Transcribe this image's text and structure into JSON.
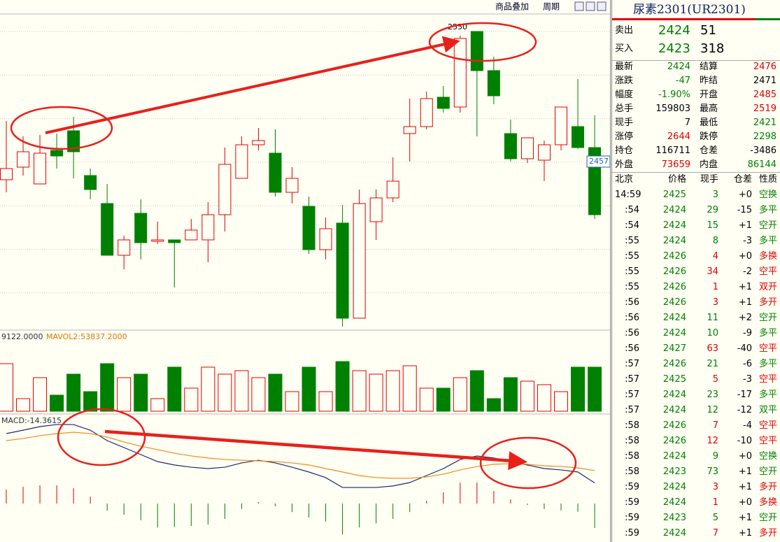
{
  "toolbar": {
    "overlay": "商品叠加",
    "period": "周期"
  },
  "chart": {
    "type": "candlestick",
    "ylim": [
      2337.5,
      2562.5
    ],
    "up_color": "#e00000",
    "down_color": "#008000",
    "candles": [
      {
        "open": 2444,
        "high": 2486,
        "low": 2435,
        "close": 2452
      },
      {
        "open": 2453,
        "high": 2475,
        "low": 2447,
        "close": 2464
      },
      {
        "open": 2441,
        "high": 2476,
        "low": 2441,
        "close": 2463
      },
      {
        "open": 2465,
        "high": 2477,
        "low": 2452,
        "close": 2461
      },
      {
        "open": 2479,
        "high": 2489,
        "low": 2445,
        "close": 2464
      },
      {
        "open": 2447,
        "high": 2452,
        "low": 2430,
        "close": 2437
      },
      {
        "open": 2427,
        "high": 2441,
        "low": 2390,
        "close": 2390
      },
      {
        "open": 2390,
        "high": 2404,
        "low": 2380,
        "close": 2401
      },
      {
        "open": 2420,
        "high": 2430,
        "low": 2387,
        "close": 2399
      },
      {
        "open": 2400,
        "high": 2414,
        "low": 2398,
        "close": 2401
      },
      {
        "open": 2401,
        "high": 2401,
        "low": 2367,
        "close": 2399
      },
      {
        "open": 2401,
        "high": 2416,
        "low": 2401,
        "close": 2408
      },
      {
        "open": 2401,
        "high": 2428,
        "low": 2385,
        "close": 2419
      },
      {
        "open": 2419,
        "high": 2467,
        "low": 2407,
        "close": 2455
      },
      {
        "open": 2445,
        "high": 2475,
        "low": 2445,
        "close": 2469
      },
      {
        "open": 2469,
        "high": 2481,
        "low": 2465,
        "close": 2472
      },
      {
        "open": 2463,
        "high": 2480,
        "low": 2432,
        "close": 2435
      },
      {
        "open": 2435,
        "high": 2453,
        "low": 2427,
        "close": 2445
      },
      {
        "open": 2425,
        "high": 2432,
        "low": 2391,
        "close": 2394
      },
      {
        "open": 2394,
        "high": 2417,
        "low": 2387,
        "close": 2409
      },
      {
        "open": 2413,
        "high": 2426,
        "low": 2339,
        "close": 2345
      },
      {
        "open": 2345,
        "high": 2437,
        "low": 2345,
        "close": 2427
      },
      {
        "open": 2414,
        "high": 2437,
        "low": 2401,
        "close": 2431
      },
      {
        "open": 2431,
        "high": 2460,
        "low": 2428,
        "close": 2443
      },
      {
        "open": 2477,
        "high": 2502,
        "low": 2457,
        "close": 2482
      },
      {
        "open": 2482,
        "high": 2507,
        "low": 2480,
        "close": 2502
      },
      {
        "open": 2503,
        "high": 2511,
        "low": 2492,
        "close": 2495
      },
      {
        "open": 2496,
        "high": 2547,
        "low": 2492,
        "close": 2545
      },
      {
        "open": 2550,
        "high": 2550,
        "low": 2475,
        "close": 2522
      },
      {
        "open": 2522,
        "high": 2532,
        "low": 2498,
        "close": 2504
      },
      {
        "open": 2477,
        "high": 2487,
        "low": 2457,
        "close": 2459
      },
      {
        "open": 2459,
        "high": 2474,
        "low": 2456,
        "close": 2474
      },
      {
        "open": 2458,
        "high": 2472,
        "low": 2443,
        "close": 2469
      },
      {
        "open": 2469,
        "high": 2496,
        "low": 2465,
        "close": 2496
      },
      {
        "open": 2482,
        "high": 2516,
        "low": 2466,
        "close": 2467
      },
      {
        "open": 2467,
        "high": 2490,
        "low": 2416,
        "close": 2419
      }
    ]
  },
  "price_tag": 2457,
  "volume": {
    "label1": "9122.0000",
    "label2": "MAVOL2:53837.2000",
    "ylim": [
      0,
      105600
    ],
    "values": [
      81600,
      21600,
      57600,
      27600,
      63600,
      33600,
      81600,
      57600,
      63600,
      21600,
      75600,
      39600,
      75600,
      63600,
      69600,
      57600,
      63600,
      33600,
      75600,
      33600,
      85200,
      69600,
      63600,
      69600,
      78000,
      39600,
      39600,
      57600,
      69600,
      21600,
      57600,
      51600,
      45600,
      33600,
      75600,
      75600
    ]
  },
  "macd": {
    "label": "MACD:-14.3615",
    "ylim": [
      -22.55,
      49.2
    ],
    "dif_color": "#1a2a6c",
    "dea_color": "#f08c1e",
    "dif": [
      41,
      43,
      45.1,
      46.3,
      46.3,
      43,
      36.9,
      32.8,
      28.7,
      24.6,
      22.6,
      21.3,
      20.5,
      21.3,
      23.8,
      25.4,
      23.8,
      21.3,
      18.5,
      15.2,
      9.4,
      9.4,
      9.4,
      10.3,
      12.3,
      16.4,
      20.5,
      25.8,
      27.9,
      26.7,
      24.6,
      22.6,
      20.5,
      19.7,
      18.5,
      12.1
    ],
    "dea": [
      36.9,
      38.1,
      39.8,
      41,
      41.8,
      41,
      39,
      36.1,
      33.6,
      31.6,
      29.5,
      27.9,
      26.7,
      25.8,
      25.4,
      25,
      24.6,
      23.8,
      22.6,
      20.5,
      18.5,
      16.4,
      15.2,
      14.8,
      14.8,
      15.6,
      17.2,
      19.7,
      21.7,
      23,
      23.4,
      23,
      22.1,
      21.7,
      20.9,
      19.3
    ],
    "hist": [
      8.2,
      9.8,
      10.6,
      10.6,
      9,
      4,
      -4.2,
      -6.6,
      -9.8,
      -14,
      -13.8,
      -13.2,
      -12.4,
      -9,
      -3.2,
      0.8,
      -1.6,
      -5,
      -8.2,
      -10.6,
      -18.2,
      -14,
      -11.6,
      -9,
      -5,
      1.6,
      6.6,
      12.2,
      12.4,
      7.4,
      2.4,
      -0.8,
      -3.2,
      -4,
      -4.8,
      -14.3615
    ]
  },
  "quote": {
    "title": "尿素2301(UR2301)",
    "sell": {
      "label": "卖出",
      "price": "2424",
      "qty": "51"
    },
    "buy": {
      "label": "买入",
      "price": "2423",
      "qty": "318"
    },
    "stats": [
      [
        {
          "label": "最新",
          "value": "2424",
          "color": "#008000"
        },
        {
          "label": "结算",
          "value": "2476",
          "color": "#e00000"
        }
      ],
      [
        {
          "label": "涨跌",
          "value": "-47",
          "color": "#008000"
        },
        {
          "label": "昨结",
          "value": "2471",
          "color": "#000000"
        }
      ],
      [
        {
          "label": "幅度",
          "value": "-1.90%",
          "color": "#008000"
        },
        {
          "label": "开盘",
          "value": "2485",
          "color": "#e00000"
        }
      ],
      [
        {
          "label": "总手",
          "value": "159803",
          "color": "#000000"
        },
        {
          "label": "最高",
          "value": "2519",
          "color": "#e00000"
        }
      ],
      [
        {
          "label": "现手",
          "value": "7",
          "color": "#000000"
        },
        {
          "label": "最低",
          "value": "2421",
          "color": "#008000"
        }
      ],
      [
        {
          "label": "涨停",
          "value": "2644",
          "color": "#e00000"
        },
        {
          "label": "跌停",
          "value": "2298",
          "color": "#008000"
        }
      ],
      [
        {
          "label": "持仓",
          "value": "116711",
          "color": "#000000"
        },
        {
          "label": "仓差",
          "value": "-3486",
          "color": "#000000"
        }
      ],
      [
        {
          "label": "外盘",
          "value": "73659",
          "color": "#e00000"
        },
        {
          "label": "内盘",
          "value": "86144",
          "color": "#008000"
        }
      ]
    ],
    "trade_header": [
      "北京",
      "价格",
      "现手",
      "仓差",
      "性质"
    ],
    "trade_price_color": "#008000",
    "trades": [
      {
        "time": "14:59",
        "price": "2425",
        "volume": "3",
        "oi": "+0",
        "nature": "空换",
        "color": "#008000"
      },
      {
        "time": ":54",
        "price": "2424",
        "volume": "29",
        "oi": "-15",
        "nature": "多平",
        "color": "#008000"
      },
      {
        "time": ":54",
        "price": "2424",
        "volume": "15",
        "oi": "+1",
        "nature": "空开",
        "color": "#008000"
      },
      {
        "time": ":55",
        "price": "2424",
        "volume": "8",
        "oi": "-3",
        "nature": "多平",
        "color": "#008000"
      },
      {
        "time": ":55",
        "price": "2426",
        "volume": "4",
        "oi": "+0",
        "nature": "多换",
        "color": "#e00000"
      },
      {
        "time": ":55",
        "price": "2426",
        "volume": "34",
        "oi": "-2",
        "nature": "空平",
        "color": "#e00000"
      },
      {
        "time": ":55",
        "price": "2426",
        "volume": "1",
        "oi": "+1",
        "nature": "双开",
        "color": "#e00000"
      },
      {
        "time": ":56",
        "price": "2426",
        "volume": "3",
        "oi": "+1",
        "nature": "多开",
        "color": "#e00000"
      },
      {
        "time": ":56",
        "price": "2424",
        "volume": "11",
        "oi": "+2",
        "nature": "空开",
        "color": "#008000"
      },
      {
        "time": ":56",
        "price": "2424",
        "volume": "10",
        "oi": "-9",
        "nature": "多平",
        "color": "#008000"
      },
      {
        "time": ":56",
        "price": "2427",
        "volume": "63",
        "oi": "-40",
        "nature": "空平",
        "color": "#e00000"
      },
      {
        "time": ":57",
        "price": "2426",
        "volume": "21",
        "oi": "-6",
        "nature": "多平",
        "color": "#008000"
      },
      {
        "time": ":57",
        "price": "2425",
        "volume": "5",
        "oi": "-3",
        "nature": "空平",
        "color": "#e00000"
      },
      {
        "time": ":57",
        "price": "2424",
        "volume": "23",
        "oi": "-17",
        "nature": "多平",
        "color": "#008000"
      },
      {
        "time": ":57",
        "price": "2424",
        "volume": "12",
        "oi": "-12",
        "nature": "双平",
        "color": "#008000"
      },
      {
        "time": ":58",
        "price": "2426",
        "volume": "7",
        "oi": "-4",
        "nature": "空平",
        "color": "#e00000"
      },
      {
        "time": ":58",
        "price": "2426",
        "volume": "12",
        "oi": "-10",
        "nature": "空平",
        "color": "#e00000"
      },
      {
        "time": ":58",
        "price": "2424",
        "volume": "9",
        "oi": "+0",
        "nature": "空换",
        "color": "#008000"
      },
      {
        "time": ":58",
        "price": "2423",
        "volume": "73",
        "oi": "+1",
        "nature": "空开",
        "color": "#008000"
      },
      {
        "time": ":59",
        "price": "2424",
        "volume": "3",
        "oi": "+1",
        "nature": "多开",
        "color": "#e00000"
      },
      {
        "time": ":59",
        "price": "2424",
        "volume": "1",
        "oi": "+0",
        "nature": "多换",
        "color": "#e00000"
      },
      {
        "time": ":59",
        "price": "2423",
        "volume": "5",
        "oi": "+1",
        "nature": "空开",
        "color": "#008000"
      },
      {
        "time": ":59",
        "price": "2424",
        "volume": "7",
        "oi": "+1",
        "nature": "多开",
        "color": "#e00000"
      }
    ]
  }
}
